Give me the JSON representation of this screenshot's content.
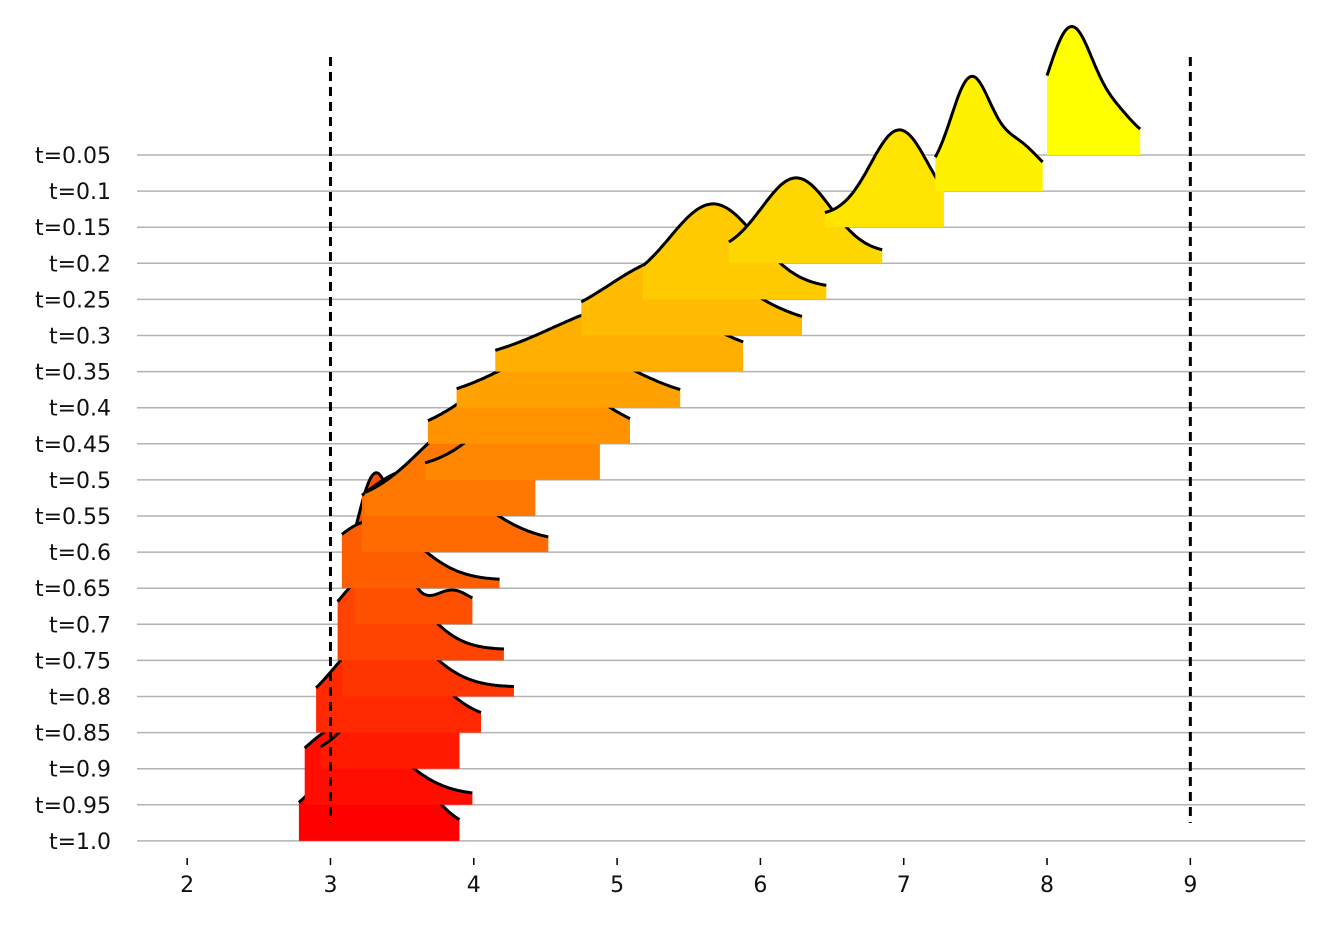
{
  "chart_data": {
    "type": "ridgeline",
    "title": "",
    "xlabel": "",
    "ylabel": "",
    "xlim": [
      1.65,
      9.8
    ],
    "x_ticks": [
      2,
      3,
      4,
      5,
      6,
      7,
      8,
      9
    ],
    "reference_lines": [
      3,
      9
    ],
    "grid": "horizontal baselines per row",
    "color_scale": "yellow (top) to red (bottom)",
    "rows": [
      {
        "label": "t=0.05",
        "color": "#ffff00",
        "range": [
          8.0,
          8.65
        ],
        "height": 1.4,
        "peaks": [
          {
            "mu": 8.17,
            "sigma": 0.16,
            "a": 1.0
          },
          {
            "mu": 8.5,
            "sigma": 0.12,
            "a": 0.18
          }
        ]
      },
      {
        "label": "t=0.1",
        "color": "#fff200",
        "range": [
          7.22,
          7.97
        ],
        "height": 1.25,
        "peaks": [
          {
            "mu": 7.47,
            "sigma": 0.14,
            "a": 1.0
          },
          {
            "mu": 7.8,
            "sigma": 0.14,
            "a": 0.32
          }
        ]
      },
      {
        "label": "t=0.15",
        "color": "#ffe400",
        "range": [
          6.45,
          7.28
        ],
        "height": 1.06,
        "peaks": [
          {
            "mu": 6.97,
            "sigma": 0.2,
            "a": 1.0
          }
        ]
      },
      {
        "label": "t=0.2",
        "color": "#ffd700",
        "range": [
          5.78,
          6.85
        ],
        "height": 0.93,
        "peaks": [
          {
            "mu": 6.25,
            "sigma": 0.24,
            "a": 1.0
          }
        ]
      },
      {
        "label": "t=0.25",
        "color": "#ffca00",
        "range": [
          5.18,
          6.46
        ],
        "height": 1.04,
        "peaks": [
          {
            "mu": 5.67,
            "sigma": 0.3,
            "a": 1.0
          }
        ]
      },
      {
        "label": "t=0.3",
        "color": "#ffbc00",
        "range": [
          4.75,
          6.29
        ],
        "height": 0.85,
        "peaks": [
          {
            "mu": 5.4,
            "sigma": 0.45,
            "a": 1.0
          }
        ]
      },
      {
        "label": "t=0.35",
        "color": "#ffaf00",
        "range": [
          4.15,
          5.88
        ],
        "height": 0.73,
        "peaks": [
          {
            "mu": 5.1,
            "sigma": 0.55,
            "a": 1.0
          }
        ]
      },
      {
        "label": "t=0.4",
        "color": "#ffa100",
        "range": [
          3.88,
          5.44
        ],
        "height": 0.64,
        "peaks": [
          {
            "mu": 4.65,
            "sigma": 0.45,
            "a": 1.0
          }
        ]
      },
      {
        "label": "t=0.45",
        "color": "#ff9400",
        "range": [
          3.68,
          5.09
        ],
        "height": 0.86,
        "peaks": [
          {
            "mu": 4.4,
            "sigma": 0.4,
            "a": 1.0
          }
        ]
      },
      {
        "label": "t=0.5",
        "color": "#ff8600",
        "range": [
          3.66,
          4.88
        ],
        "height": 0.98,
        "peaks": [
          {
            "mu": 4.47,
            "sigma": 0.36,
            "a": 1.0
          }
        ]
      },
      {
        "label": "t=0.55",
        "color": "#ff7900",
        "range": [
          3.24,
          4.43
        ],
        "height": 1.07,
        "peaks": [
          {
            "mu": 4.0,
            "sigma": 0.38,
            "a": 1.0
          }
        ]
      },
      {
        "label": "t=0.6",
        "color": "#ff6b00",
        "range": [
          3.22,
          4.52
        ],
        "height": 0.91,
        "peaks": [
          {
            "mu": 3.6,
            "sigma": 0.4,
            "a": 1.0
          }
        ]
      },
      {
        "label": "t=0.65",
        "color": "#ff5e00",
        "range": [
          3.08,
          4.18
        ],
        "height": 0.74,
        "peaks": [
          {
            "mu": 3.3,
            "sigma": 0.3,
            "a": 1.0
          }
        ]
      },
      {
        "label": "t=0.7",
        "color": "#ff5000",
        "range": [
          3.17,
          3.99
        ],
        "height": 1.65,
        "peaks": [
          {
            "mu": 3.32,
            "sigma": 0.14,
            "a": 1.0
          },
          {
            "mu": 3.85,
            "sigma": 0.12,
            "a": 0.12
          }
        ]
      },
      {
        "label": "t=0.75",
        "color": "#ff4300",
        "range": [
          3.05,
          4.21
        ],
        "height": 0.98,
        "peaks": [
          {
            "mu": 3.33,
            "sigma": 0.28,
            "a": 1.0
          }
        ]
      },
      {
        "label": "t=0.8",
        "color": "#ff3500",
        "range": [
          3.08,
          4.28
        ],
        "height": 0.86,
        "peaks": [
          {
            "mu": 3.34,
            "sigma": 0.3,
            "a": 1.0
          }
        ]
      },
      {
        "label": "t=0.85",
        "color": "#ff2800",
        "range": [
          2.9,
          4.05
        ],
        "height": 1.09,
        "peaks": [
          {
            "mu": 3.35,
            "sigma": 0.32,
            "a": 1.0
          }
        ]
      },
      {
        "label": "t=0.9",
        "color": "#ff1a00",
        "range": [
          2.93,
          3.9
        ],
        "height": 1.12,
        "peaks": [
          {
            "mu": 3.5,
            "sigma": 0.27,
            "a": 1.0
          }
        ]
      },
      {
        "label": "t=0.95",
        "color": "#ff0d00",
        "range": [
          2.82,
          3.99
        ],
        "height": 0.88,
        "peaks": [
          {
            "mu": 3.12,
            "sigma": 0.33,
            "a": 1.0
          }
        ]
      },
      {
        "label": "t=1.0",
        "color": "#ff0000",
        "range": [
          2.78,
          3.9
        ],
        "height": 1.0,
        "peaks": [
          {
            "mu": 3.2,
            "sigma": 0.3,
            "a": 1.0
          },
          {
            "mu": 3.55,
            "sigma": 0.2,
            "a": 0.35
          }
        ]
      }
    ]
  }
}
